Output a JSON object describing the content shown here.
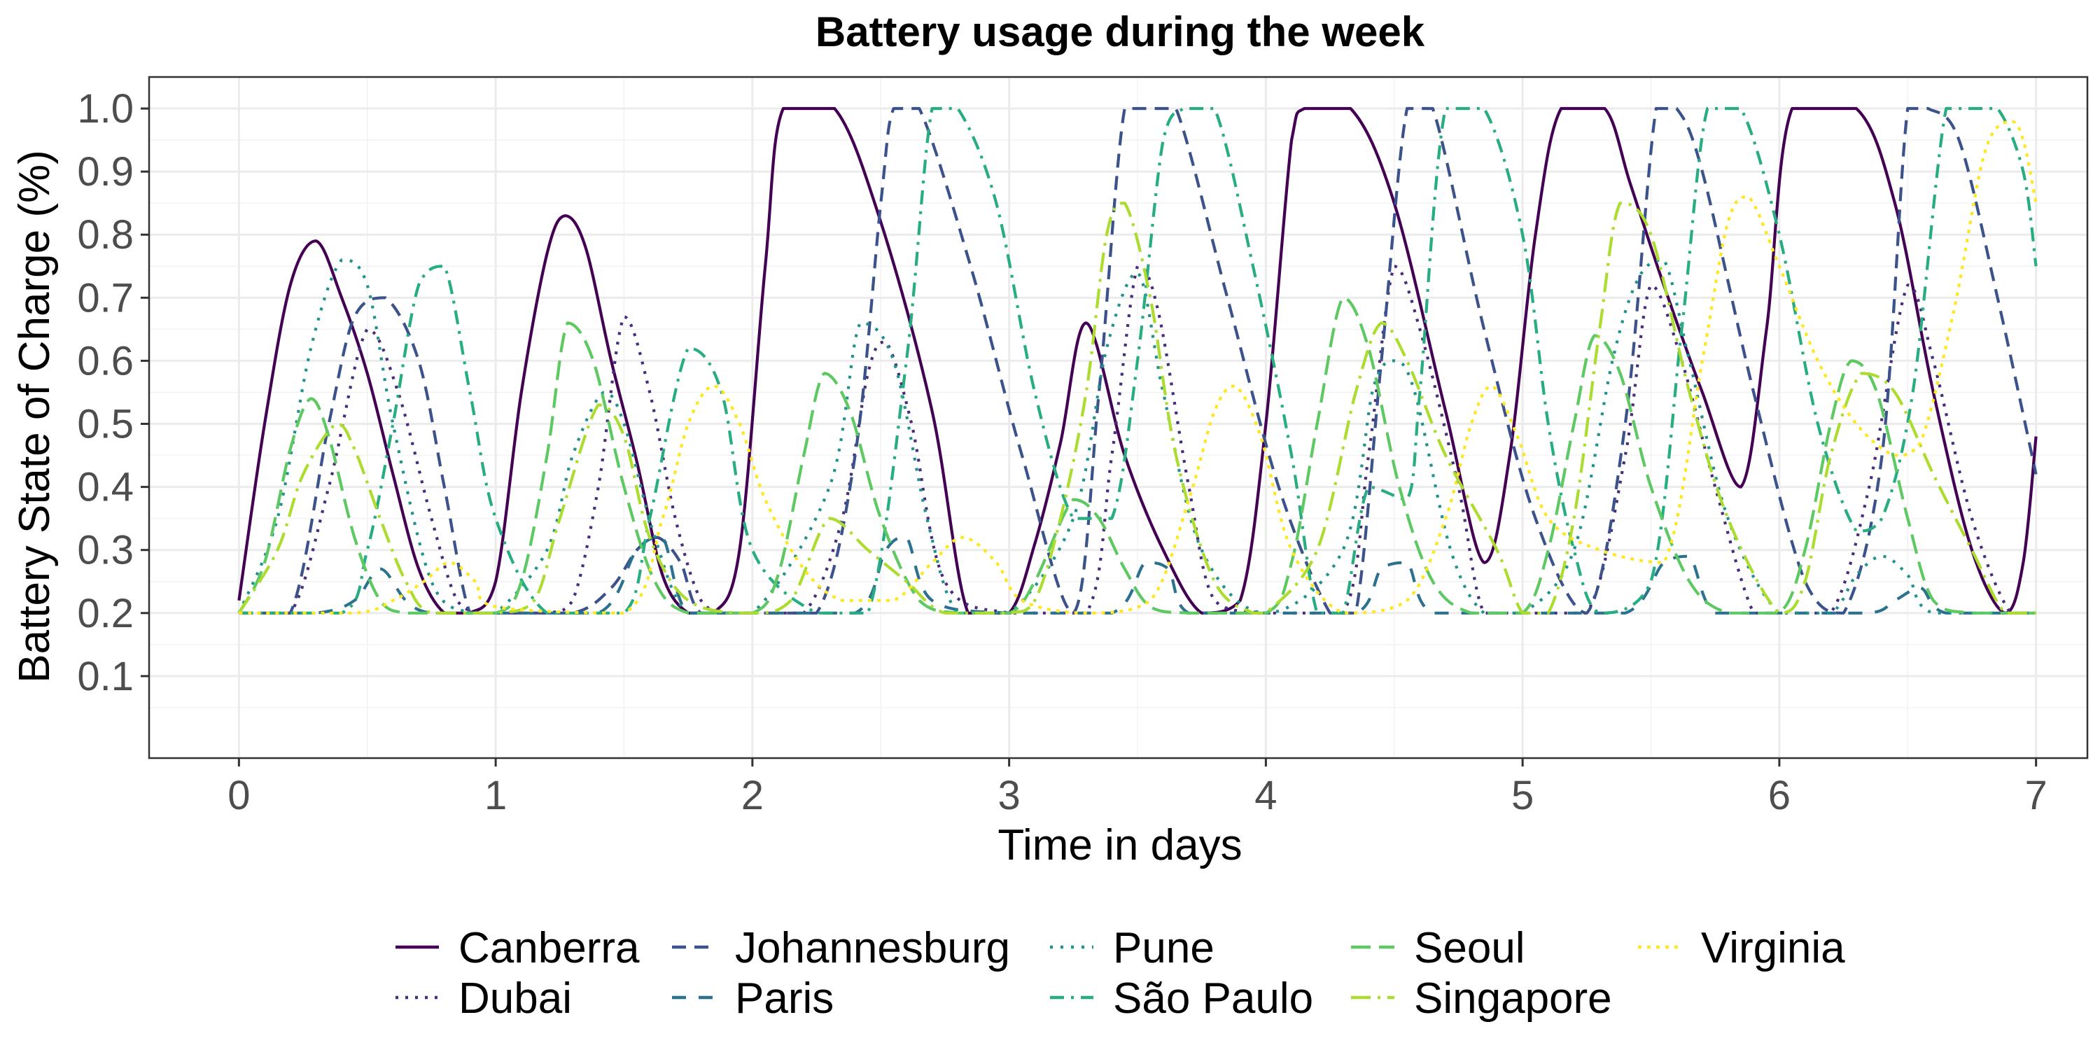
{
  "chart_data": {
    "type": "line",
    "title": "Battery usage during the week",
    "xlabel": "Time in days",
    "ylabel": "Battery State of Charge  (%)",
    "xlim": [
      -0.35,
      7.2
    ],
    "ylim": [
      -0.03,
      1.05
    ],
    "x_ticks": [
      0,
      1,
      2,
      3,
      4,
      5,
      6,
      7
    ],
    "x_tick_labels": [
      "0",
      "1",
      "2",
      "3",
      "4",
      "5",
      "6",
      "7"
    ],
    "y_ticks": [
      0.1,
      0.2,
      0.3,
      0.4,
      0.5,
      0.6,
      0.7,
      0.8,
      0.9,
      1.0
    ],
    "y_tick_labels": [
      "0.1",
      "0.2",
      "0.3",
      "0.4",
      "0.5",
      "0.6",
      "0.7",
      "0.8",
      "0.9",
      "1.0"
    ],
    "grid": true,
    "legend_position": "bottom",
    "series": [
      {
        "name": "Canberra",
        "color": "#440154",
        "dash": "",
        "x": [
          0,
          0.1,
          0.2,
          0.3,
          0.4,
          0.5,
          0.6,
          0.7,
          0.8,
          0.9,
          1.0,
          1.1,
          1.2,
          1.27,
          1.35,
          1.45,
          1.55,
          1.65,
          1.75,
          1.85,
          1.95,
          2.05,
          2.12,
          2.32,
          2.5,
          2.7,
          2.84,
          3.0,
          3.1,
          3.2,
          3.3,
          3.45,
          3.6,
          3.75,
          3.9,
          4.0,
          4.1,
          4.15,
          4.33,
          4.5,
          4.7,
          4.85,
          4.95,
          5.05,
          5.15,
          5.32,
          5.42,
          5.55,
          5.7,
          5.85,
          5.95,
          6.05,
          6.3,
          6.45,
          6.6,
          6.75,
          6.88,
          6.95,
          7.0
        ],
        "y": [
          0.22,
          0.5,
          0.72,
          0.79,
          0.7,
          0.58,
          0.42,
          0.27,
          0.2,
          0.2,
          0.25,
          0.55,
          0.77,
          0.83,
          0.78,
          0.6,
          0.44,
          0.26,
          0.2,
          0.2,
          0.3,
          0.75,
          1.0,
          1.0,
          0.82,
          0.52,
          0.2,
          0.2,
          0.31,
          0.47,
          0.66,
          0.45,
          0.3,
          0.2,
          0.22,
          0.5,
          0.95,
          1.0,
          1.0,
          0.85,
          0.52,
          0.28,
          0.45,
          0.8,
          1.0,
          1.0,
          0.88,
          0.72,
          0.55,
          0.4,
          0.65,
          1.0,
          1.0,
          0.85,
          0.55,
          0.3,
          0.2,
          0.28,
          0.48
        ]
      },
      {
        "name": "Dubai",
        "color": "#472d7b",
        "dash": "4 10",
        "x": [
          0,
          0.2,
          0.35,
          0.5,
          0.62,
          0.75,
          0.85,
          0.95,
          1.0,
          1.2,
          1.3,
          1.4,
          1.5,
          1.6,
          1.7,
          1.8,
          1.9,
          2.0,
          2.2,
          2.35,
          2.45,
          2.52,
          2.62,
          2.75,
          3.0,
          3.3,
          3.4,
          3.5,
          3.58,
          3.7,
          3.8,
          4.0,
          4.3,
          4.4,
          4.5,
          4.6,
          4.75,
          4.85,
          5.0,
          5.25,
          5.4,
          5.5,
          5.62,
          5.75,
          5.9,
          6.0,
          6.2,
          6.35,
          6.5,
          6.6,
          6.75,
          6.9,
          7.0
        ],
        "y": [
          0.2,
          0.2,
          0.4,
          0.65,
          0.55,
          0.35,
          0.22,
          0.2,
          0.2,
          0.2,
          0.22,
          0.4,
          0.67,
          0.55,
          0.35,
          0.22,
          0.2,
          0.2,
          0.2,
          0.35,
          0.58,
          0.63,
          0.5,
          0.25,
          0.2,
          0.2,
          0.45,
          0.75,
          0.68,
          0.4,
          0.22,
          0.2,
          0.2,
          0.45,
          0.75,
          0.65,
          0.4,
          0.2,
          0.2,
          0.2,
          0.45,
          0.72,
          0.6,
          0.4,
          0.2,
          0.2,
          0.2,
          0.4,
          0.72,
          0.6,
          0.35,
          0.2,
          0.2
        ]
      },
      {
        "name": "Johannesburg",
        "color": "#3b528b",
        "dash": "20 12",
        "x": [
          0,
          0.2,
          0.35,
          0.45,
          0.57,
          0.7,
          0.8,
          0.9,
          1.0,
          1.3,
          1.45,
          1.55,
          1.63,
          1.72,
          1.8,
          2.0,
          2.25,
          2.4,
          2.5,
          2.55,
          2.65,
          2.85,
          3.05,
          3.25,
          3.35,
          3.45,
          3.55,
          3.65,
          3.85,
          4.05,
          4.25,
          4.35,
          4.45,
          4.55,
          4.65,
          4.85,
          5.05,
          5.25,
          5.4,
          5.52,
          5.6,
          5.7,
          5.9,
          6.1,
          6.25,
          6.4,
          6.5,
          6.58,
          6.7,
          6.85,
          7.0
        ],
        "y": [
          0.2,
          0.2,
          0.5,
          0.67,
          0.7,
          0.6,
          0.4,
          0.2,
          0.2,
          0.2,
          0.24,
          0.3,
          0.32,
          0.28,
          0.2,
          0.2,
          0.2,
          0.45,
          0.85,
          1.0,
          1.0,
          0.75,
          0.45,
          0.2,
          0.55,
          1.0,
          1.0,
          1.0,
          0.7,
          0.4,
          0.2,
          0.2,
          0.6,
          1.0,
          1.0,
          0.65,
          0.35,
          0.2,
          0.5,
          1.0,
          1.0,
          0.9,
          0.55,
          0.25,
          0.2,
          0.45,
          1.0,
          1.0,
          0.95,
          0.7,
          0.42
        ]
      },
      {
        "name": "Paris",
        "color": "#2c728e",
        "dash": "20 18",
        "x": [
          0,
          0.3,
          0.45,
          0.55,
          0.65,
          0.75,
          1.0,
          1.4,
          1.55,
          1.65,
          1.75,
          2.0,
          2.4,
          2.52,
          2.6,
          2.7,
          3.0,
          3.4,
          3.53,
          3.62,
          3.7,
          4.0,
          4.35,
          4.45,
          4.55,
          4.65,
          5.0,
          5.4,
          5.55,
          5.65,
          5.75,
          6.0,
          6.35,
          6.45,
          6.55,
          6.65,
          7.0
        ],
        "y": [
          0.2,
          0.2,
          0.22,
          0.27,
          0.22,
          0.2,
          0.2,
          0.2,
          0.3,
          0.32,
          0.2,
          0.2,
          0.2,
          0.3,
          0.32,
          0.22,
          0.2,
          0.2,
          0.28,
          0.27,
          0.2,
          0.2,
          0.2,
          0.27,
          0.28,
          0.2,
          0.2,
          0.2,
          0.28,
          0.29,
          0.2,
          0.2,
          0.2,
          0.22,
          0.24,
          0.2,
          0.2
        ]
      },
      {
        "name": "Pune",
        "color": "#21918c",
        "dash": "4 11",
        "x": [
          0,
          0.15,
          0.28,
          0.4,
          0.5,
          0.6,
          0.75,
          0.9,
          1.0,
          1.2,
          1.3,
          1.42,
          1.5,
          1.62,
          1.75,
          2.0,
          2.3,
          2.42,
          2.55,
          2.68,
          2.8,
          3.0,
          3.25,
          3.38,
          3.5,
          3.6,
          3.75,
          4.0,
          4.3,
          4.42,
          4.5,
          4.58,
          4.72,
          4.85,
          5.0,
          5.2,
          5.35,
          5.45,
          5.55,
          5.65,
          5.8,
          6.0,
          6.2,
          6.3,
          6.4,
          6.5,
          6.6,
          7.0
        ],
        "y": [
          0.2,
          0.35,
          0.62,
          0.76,
          0.72,
          0.5,
          0.25,
          0.2,
          0.2,
          0.3,
          0.45,
          0.55,
          0.5,
          0.32,
          0.2,
          0.2,
          0.4,
          0.66,
          0.6,
          0.35,
          0.2,
          0.2,
          0.35,
          0.62,
          0.74,
          0.55,
          0.3,
          0.2,
          0.3,
          0.56,
          0.6,
          0.55,
          0.3,
          0.2,
          0.2,
          0.3,
          0.6,
          0.73,
          0.76,
          0.6,
          0.35,
          0.2,
          0.2,
          0.26,
          0.29,
          0.26,
          0.2,
          0.2
        ]
      },
      {
        "name": "São Paulo",
        "color": "#27ad81",
        "dash": "20 10 4 10",
        "x": [
          0,
          0.4,
          0.5,
          0.6,
          0.7,
          0.8,
          0.9,
          1.0,
          1.2,
          1.5,
          1.6,
          1.75,
          1.88,
          2.0,
          2.25,
          2.45,
          2.6,
          2.7,
          2.8,
          2.95,
          3.1,
          3.25,
          3.4,
          3.5,
          3.6,
          3.68,
          3.8,
          3.95,
          4.1,
          4.2,
          4.3,
          4.4,
          4.55,
          4.6,
          4.7,
          4.85,
          5.0,
          5.1,
          5.2,
          5.3,
          5.5,
          5.62,
          5.72,
          5.85,
          6.0,
          6.15,
          6.3,
          6.4,
          6.52,
          6.65,
          6.75,
          6.85,
          6.95,
          7.0
        ],
        "y": [
          0.2,
          0.2,
          0.3,
          0.5,
          0.72,
          0.75,
          0.55,
          0.35,
          0.2,
          0.2,
          0.35,
          0.62,
          0.55,
          0.3,
          0.2,
          0.2,
          0.6,
          1.0,
          1.0,
          0.85,
          0.55,
          0.35,
          0.35,
          0.6,
          0.95,
          1.0,
          1.0,
          0.75,
          0.45,
          0.2,
          0.2,
          0.4,
          0.38,
          0.55,
          1.0,
          1.0,
          0.8,
          0.5,
          0.3,
          0.2,
          0.25,
          0.65,
          1.0,
          1.0,
          0.8,
          0.5,
          0.33,
          0.35,
          0.55,
          1.0,
          1.0,
          1.0,
          0.9,
          0.75
        ]
      },
      {
        "name": "Seoul",
        "color": "#5ec962",
        "dash": "28 12",
        "x": [
          0,
          0.1,
          0.2,
          0.28,
          0.35,
          0.45,
          0.55,
          0.65,
          0.75,
          1.0,
          1.1,
          1.2,
          1.28,
          1.38,
          1.5,
          1.62,
          1.75,
          2.0,
          2.1,
          2.2,
          2.28,
          2.38,
          2.5,
          2.65,
          2.8,
          3.0,
          3.1,
          3.25,
          3.35,
          3.45,
          3.55,
          3.7,
          4.0,
          4.1,
          4.2,
          4.3,
          4.4,
          4.52,
          4.65,
          4.8,
          5.0,
          5.1,
          5.2,
          5.28,
          5.38,
          5.5,
          5.65,
          5.8,
          6.0,
          6.1,
          6.2,
          6.28,
          6.38,
          6.5,
          6.6,
          6.75,
          7.0
        ],
        "y": [
          0.2,
          0.28,
          0.46,
          0.54,
          0.48,
          0.32,
          0.22,
          0.2,
          0.2,
          0.2,
          0.25,
          0.45,
          0.66,
          0.6,
          0.4,
          0.25,
          0.2,
          0.2,
          0.26,
          0.45,
          0.58,
          0.52,
          0.35,
          0.22,
          0.2,
          0.2,
          0.25,
          0.38,
          0.35,
          0.27,
          0.21,
          0.2,
          0.2,
          0.28,
          0.5,
          0.7,
          0.62,
          0.4,
          0.25,
          0.2,
          0.2,
          0.3,
          0.5,
          0.64,
          0.58,
          0.4,
          0.25,
          0.2,
          0.2,
          0.3,
          0.5,
          0.6,
          0.55,
          0.35,
          0.22,
          0.2,
          0.2
        ]
      },
      {
        "name": "Singapore",
        "color": "#addc30",
        "dash": "28 10 4 10",
        "x": [
          0,
          0.15,
          0.25,
          0.38,
          0.45,
          0.55,
          0.65,
          0.75,
          1.0,
          1.15,
          1.25,
          1.4,
          1.5,
          1.6,
          1.75,
          2.0,
          2.15,
          2.3,
          2.45,
          2.6,
          2.75,
          3.0,
          3.1,
          3.2,
          3.3,
          3.38,
          3.45,
          3.55,
          3.65,
          3.8,
          3.95,
          4.0,
          4.2,
          4.35,
          4.45,
          4.55,
          4.7,
          4.9,
          5.0,
          5.1,
          5.2,
          5.3,
          5.38,
          5.5,
          5.65,
          5.8,
          6.0,
          6.1,
          6.2,
          6.32,
          6.45,
          6.6,
          6.75,
          6.88,
          7.0
        ],
        "y": [
          0.2,
          0.3,
          0.42,
          0.5,
          0.46,
          0.35,
          0.25,
          0.2,
          0.2,
          0.22,
          0.35,
          0.53,
          0.48,
          0.32,
          0.22,
          0.2,
          0.22,
          0.35,
          0.3,
          0.25,
          0.2,
          0.2,
          0.22,
          0.35,
          0.55,
          0.8,
          0.85,
          0.7,
          0.45,
          0.25,
          0.2,
          0.2,
          0.3,
          0.55,
          0.66,
          0.6,
          0.45,
          0.3,
          0.2,
          0.2,
          0.35,
          0.65,
          0.85,
          0.8,
          0.55,
          0.35,
          0.2,
          0.25,
          0.45,
          0.58,
          0.55,
          0.42,
          0.3,
          0.2,
          0.2
        ]
      },
      {
        "name": "Virginia",
        "color": "#fde725",
        "dash": "5 8",
        "x": [
          0,
          0.45,
          0.6,
          0.72,
          0.82,
          0.92,
          1.0,
          1.5,
          1.65,
          1.75,
          1.85,
          1.95,
          2.05,
          2.2,
          2.35,
          2.55,
          2.7,
          2.82,
          2.95,
          3.05,
          3.3,
          3.55,
          3.7,
          3.8,
          3.88,
          3.98,
          4.1,
          4.3,
          4.55,
          4.7,
          4.8,
          4.88,
          4.98,
          5.1,
          5.3,
          5.55,
          5.7,
          5.8,
          5.88,
          6.0,
          6.15,
          6.3,
          6.45,
          6.55,
          6.68,
          6.8,
          6.9,
          6.95,
          7.0
        ],
        "y": [
          0.2,
          0.2,
          0.22,
          0.25,
          0.28,
          0.25,
          0.21,
          0.2,
          0.35,
          0.5,
          0.56,
          0.5,
          0.38,
          0.27,
          0.22,
          0.22,
          0.28,
          0.32,
          0.28,
          0.22,
          0.2,
          0.22,
          0.38,
          0.52,
          0.56,
          0.48,
          0.3,
          0.2,
          0.22,
          0.35,
          0.5,
          0.56,
          0.48,
          0.35,
          0.3,
          0.28,
          0.6,
          0.82,
          0.86,
          0.75,
          0.6,
          0.5,
          0.45,
          0.47,
          0.68,
          0.93,
          0.98,
          0.95,
          0.85
        ]
      }
    ]
  }
}
